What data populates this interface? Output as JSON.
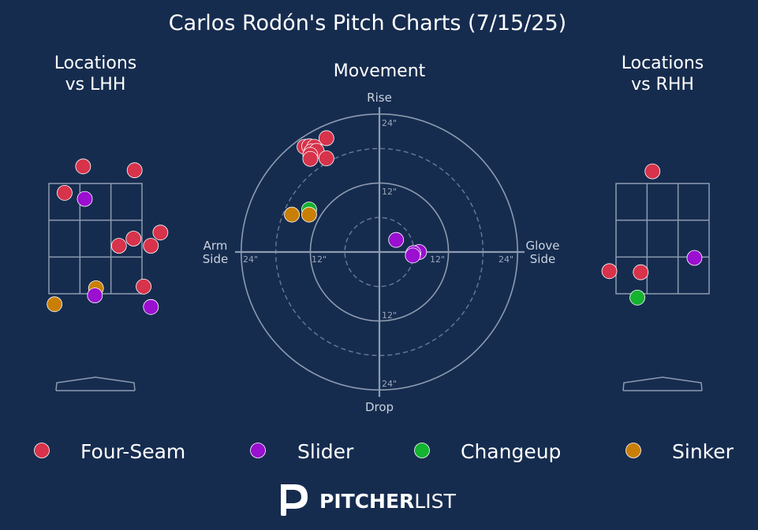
{
  "title": "Carlos Rodón's Pitch Charts (7/15/25)",
  "colors": {
    "background": "#162c4f",
    "text": "#ffffff",
    "muted_text": "#c9d1dd",
    "lines": "#8d9bb0",
    "Four-Seam": "#d7334b",
    "Slider": "#9a0fd0",
    "Changeup": "#14b330",
    "Sinker": "#c97f05"
  },
  "legend": [
    {
      "label": "Four-Seam",
      "color": "#d7334b"
    },
    {
      "label": "Slider",
      "color": "#9a0fd0"
    },
    {
      "label": "Changeup",
      "color": "#14b330"
    },
    {
      "label": "Sinker",
      "color": "#c97f05"
    }
  ],
  "logo": {
    "bold": "PITCHER",
    "light": "LIST"
  },
  "chart_data": [
    {
      "type": "scatter",
      "title": "Locations\nvs LHH",
      "grid": "3x3 strike zone",
      "points": [
        {
          "pitch": "Four-Seam",
          "x": -0.22,
          "y": 3.81
        },
        {
          "pitch": "Four-Seam",
          "x": 0.7,
          "y": 3.74
        },
        {
          "pitch": "Four-Seam",
          "x": -0.55,
          "y": 3.33
        },
        {
          "pitch": "Slider",
          "x": -0.19,
          "y": 3.22
        },
        {
          "pitch": "Four-Seam",
          "x": 1.16,
          "y": 2.61
        },
        {
          "pitch": "Four-Seam",
          "x": 0.68,
          "y": 2.5
        },
        {
          "pitch": "Four-Seam",
          "x": 0.42,
          "y": 2.37
        },
        {
          "pitch": "Four-Seam",
          "x": 0.99,
          "y": 2.37
        },
        {
          "pitch": "Four-Seam",
          "x": 0.86,
          "y": 1.63
        },
        {
          "pitch": "Sinker",
          "x": 0.01,
          "y": 1.6
        },
        {
          "pitch": "Slider",
          "x": -0.01,
          "y": 1.47
        },
        {
          "pitch": "Sinker",
          "x": -0.73,
          "y": 1.31
        },
        {
          "pitch": "Slider",
          "x": 0.99,
          "y": 1.26
        }
      ]
    },
    {
      "type": "scatter",
      "title": "Movement",
      "axis_labels": {
        "top": "Rise",
        "bottom": "Drop",
        "left": "Arm\nSide",
        "right": "Glove\nSide"
      },
      "ring_labels": [
        "12\"",
        "24\""
      ],
      "rings_inches": [
        6,
        12,
        18,
        24
      ],
      "points": [
        {
          "pitch": "Four-Seam",
          "x": -9.2,
          "y": 19.8
        },
        {
          "pitch": "Four-Seam",
          "x": -13.0,
          "y": 18.3
        },
        {
          "pitch": "Four-Seam",
          "x": -12.2,
          "y": 18.4
        },
        {
          "pitch": "Four-Seam",
          "x": -11.3,
          "y": 18.3
        },
        {
          "pitch": "Four-Seam",
          "x": -11.8,
          "y": 17.5
        },
        {
          "pitch": "Four-Seam",
          "x": -10.9,
          "y": 17.6
        },
        {
          "pitch": "Four-Seam",
          "x": -12.0,
          "y": 16.9
        },
        {
          "pitch": "Four-Seam",
          "x": -12.0,
          "y": 16.2
        },
        {
          "pitch": "Four-Seam",
          "x": -9.2,
          "y": 16.3
        },
        {
          "pitch": "Changeup",
          "x": -12.2,
          "y": 7.4
        },
        {
          "pitch": "Sinker",
          "x": -15.2,
          "y": 6.5
        },
        {
          "pitch": "Sinker",
          "x": -12.2,
          "y": 6.5
        },
        {
          "pitch": "Slider",
          "x": 2.9,
          "y": 2.1
        },
        {
          "pitch": "Slider",
          "x": 6.9,
          "y": 0.0
        },
        {
          "pitch": "Slider",
          "x": 5.9,
          "y": -0.2
        },
        {
          "pitch": "Slider",
          "x": 5.8,
          "y": -0.6
        }
      ]
    },
    {
      "type": "scatter",
      "title": "Locations\nvs RHH",
      "grid": "3x3 strike zone",
      "points": [
        {
          "pitch": "Four-Seam",
          "x": -0.18,
          "y": 3.72
        },
        {
          "pitch": "Slider",
          "x": 0.57,
          "y": 2.15
        },
        {
          "pitch": "Four-Seam",
          "x": -0.95,
          "y": 1.91
        },
        {
          "pitch": "Four-Seam",
          "x": -0.39,
          "y": 1.89
        },
        {
          "pitch": "Changeup",
          "x": -0.45,
          "y": 1.43
        }
      ]
    }
  ]
}
